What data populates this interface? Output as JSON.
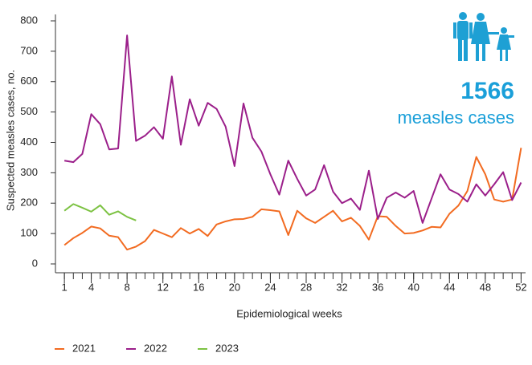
{
  "chart_data": {
    "type": "line",
    "ylabel": "Suspected  measles cases, no.",
    "xlabel": "Epidemiological weeks",
    "annotation": {
      "number": "1566",
      "text": "measles cases"
    },
    "x": [
      1,
      2,
      3,
      4,
      5,
      6,
      7,
      8,
      9,
      10,
      11,
      12,
      13,
      14,
      15,
      16,
      17,
      18,
      19,
      20,
      21,
      22,
      23,
      24,
      25,
      26,
      27,
      28,
      29,
      30,
      31,
      32,
      33,
      34,
      35,
      36,
      37,
      38,
      39,
      40,
      41,
      42,
      43,
      44,
      45,
      46,
      47,
      48,
      49,
      50,
      51,
      52
    ],
    "xlim": [
      0,
      52.5
    ],
    "xticks": [
      1,
      4,
      8,
      12,
      16,
      20,
      24,
      28,
      32,
      36,
      40,
      44,
      48,
      52
    ],
    "ylim": [
      0,
      800
    ],
    "yticks": [
      0,
      100,
      200,
      300,
      400,
      500,
      600,
      700,
      800
    ],
    "series": [
      {
        "name": "2021",
        "color": "#f26b21",
        "values": [
          62,
          85,
          102,
          123,
          117,
          93,
          88,
          47,
          57,
          75,
          112,
          100,
          88,
          118,
          100,
          115,
          92,
          130,
          140,
          147,
          148,
          155,
          180,
          177,
          173,
          95,
          175,
          150,
          135,
          155,
          175,
          140,
          152,
          125,
          80,
          157,
          155,
          125,
          100,
          102,
          110,
          122,
          120,
          165,
          192,
          240,
          352,
          295,
          212,
          205,
          212,
          382
        ]
      },
      {
        "name": "2022",
        "color": "#9b1f8a",
        "values": [
          340,
          335,
          362,
          493,
          460,
          377,
          380,
          752,
          405,
          422,
          450,
          412,
          617,
          392,
          542,
          455,
          530,
          510,
          452,
          322,
          528,
          415,
          370,
          295,
          228,
          340,
          280,
          225,
          245,
          325,
          238,
          200,
          215,
          178,
          307,
          148,
          218,
          235,
          218,
          240,
          135,
          215,
          295,
          245,
          230,
          205,
          262,
          225,
          262,
          302,
          210,
          268
        ]
      },
      {
        "name": "2023",
        "color": "#7cc242",
        "values": [
          175,
          197,
          185,
          172,
          193,
          162,
          173,
          155,
          143,
          null,
          null,
          null,
          null,
          null,
          null,
          null,
          null,
          null,
          null,
          null,
          null,
          null,
          null,
          null,
          null,
          null,
          null,
          null,
          null,
          null,
          null,
          null,
          null,
          null,
          null,
          null,
          null,
          null,
          null,
          null,
          null,
          null,
          null,
          null,
          null,
          null,
          null,
          null,
          null,
          null,
          null,
          null
        ]
      }
    ]
  }
}
